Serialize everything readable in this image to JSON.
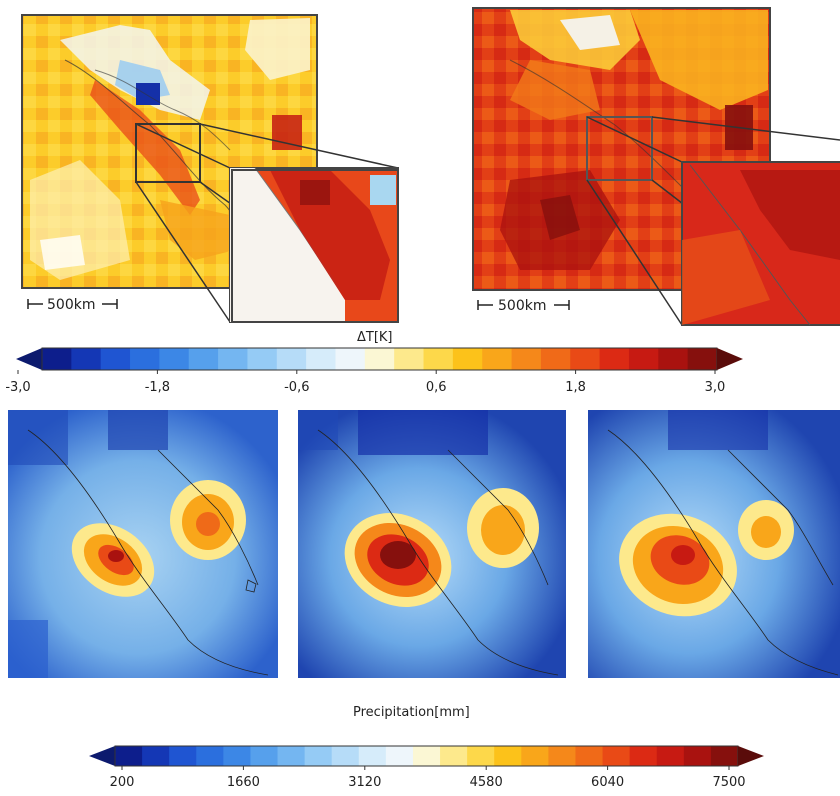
{
  "temperature_maps": {
    "left": {
      "scale_label": "500km"
    },
    "right": {
      "scale_label": "500km"
    }
  },
  "temperature_colorbar": {
    "title": "ΔT[K]",
    "tick_labels": [
      "-3,0",
      "-1,8",
      "-0,6",
      "0,6",
      "1,8",
      "3,0"
    ],
    "colors": [
      "#0d1e8c",
      "#1437b5",
      "#1f55d2",
      "#2b6fde",
      "#3c87e6",
      "#56a0ec",
      "#74b6f1",
      "#95cbf5",
      "#b6dcf8",
      "#d6ecfa",
      "#eef6fb",
      "#fbf7d4",
      "#fde98c",
      "#fdd84a",
      "#fcc21a",
      "#f9a61a",
      "#f5881a",
      "#f06a18",
      "#e94a16",
      "#dc2a14",
      "#c71a12",
      "#a9120f",
      "#86100d"
    ],
    "extend_low_color": "#0c1a6e",
    "extend_high_color": "#5a0c0a"
  },
  "precipitation_colorbar": {
    "title": "Precipitation[mm]",
    "tick_labels": [
      "200",
      "1660",
      "3120",
      "4580",
      "6040",
      "7500"
    ],
    "colors": [
      "#0d1e8c",
      "#1437b5",
      "#1f55d2",
      "#2b6fde",
      "#3c87e6",
      "#56a0ec",
      "#74b6f1",
      "#95cbf5",
      "#b6dcf8",
      "#d6ecfa",
      "#eef6fb",
      "#fbf7d4",
      "#fde98c",
      "#fdd84a",
      "#fcc21a",
      "#f9a61a",
      "#f5881a",
      "#f06a18",
      "#e94a16",
      "#dc2a14",
      "#c71a12",
      "#a9120f",
      "#86100d"
    ],
    "extend_low_color": "#0c1a6e",
    "extend_high_color": "#5a0c0a"
  },
  "precipitation_maps": [
    {
      "id": "precip-1"
    },
    {
      "id": "precip-2"
    },
    {
      "id": "precip-3"
    }
  ]
}
